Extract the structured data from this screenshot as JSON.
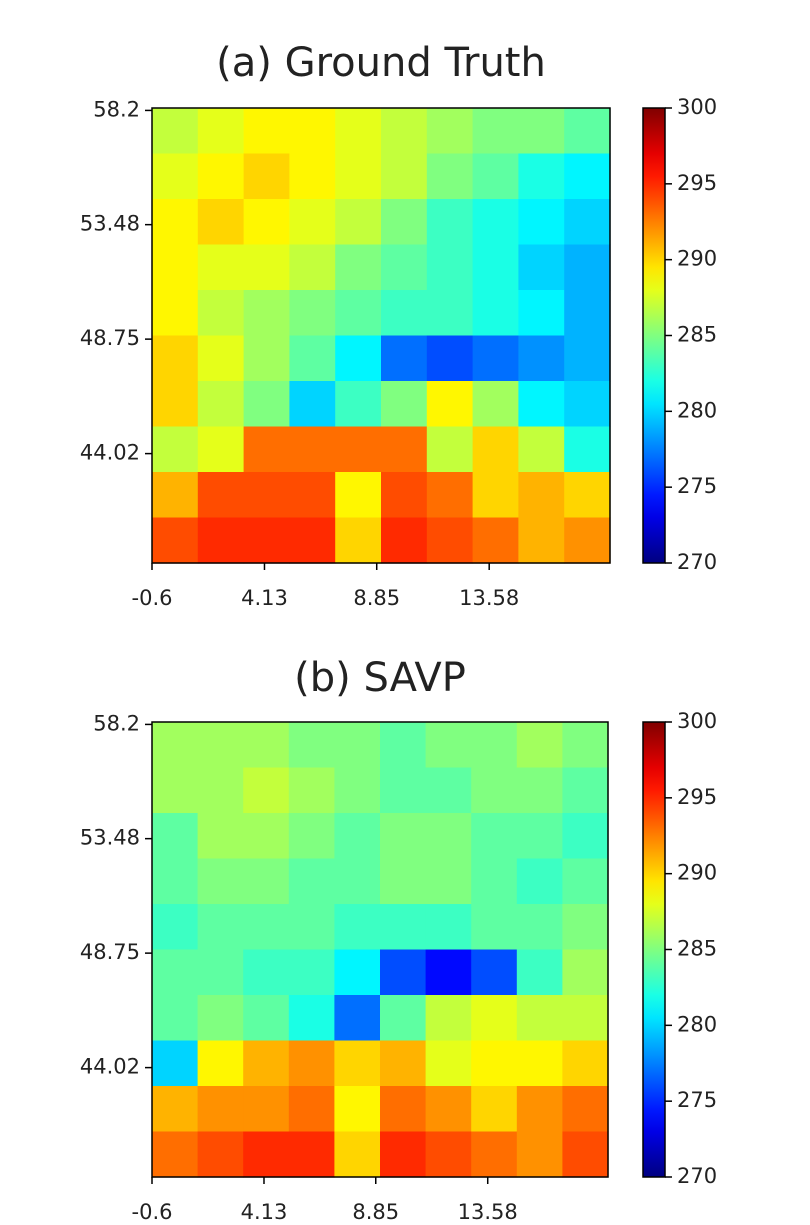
{
  "chart_data": [
    {
      "type": "heatmap",
      "title": "(a) Ground Truth",
      "colormap": "jet",
      "xlim": [
        -0.6,
        18.66
      ],
      "xticks": [
        -0.6,
        4.13,
        8.85,
        13.58
      ],
      "ylim": [
        39.5,
        58.3
      ],
      "yticks": [
        58.2,
        53.48,
        48.75,
        44.02
      ],
      "clim": [
        270,
        300
      ],
      "cticks": [
        270,
        275,
        280,
        285,
        290,
        295,
        300
      ],
      "values": [
        [
          287,
          288,
          289,
          289,
          288,
          287,
          286,
          285,
          285,
          284
        ],
        [
          288,
          289,
          290,
          289,
          288,
          287,
          285,
          284,
          282,
          281
        ],
        [
          289,
          290,
          289,
          288,
          287,
          285,
          283,
          282,
          281,
          280
        ],
        [
          289,
          288,
          288,
          287,
          285,
          284,
          283,
          282,
          280,
          279
        ],
        [
          289,
          287,
          286,
          285,
          284,
          283,
          283,
          282,
          281,
          279
        ],
        [
          290,
          288,
          286,
          284,
          281,
          277,
          276,
          277,
          278,
          279
        ],
        [
          290,
          287,
          285,
          280,
          283,
          285,
          289,
          286,
          281,
          280
        ],
        [
          287,
          288,
          293,
          293,
          293,
          293,
          287,
          290,
          287,
          282
        ],
        [
          291,
          294,
          294,
          294,
          289,
          294,
          293,
          290,
          291,
          290
        ],
        [
          294,
          295,
          295,
          295,
          290,
          295,
          294,
          293,
          291,
          292
        ]
      ]
    },
    {
      "type": "heatmap",
      "title": "(b) SAVP",
      "colormap": "jet",
      "xlim": [
        -0.6,
        18.66
      ],
      "xticks": [
        -0.6,
        4.13,
        8.85,
        13.58
      ],
      "ylim": [
        39.5,
        58.3
      ],
      "yticks": [
        58.2,
        53.48,
        48.75,
        44.02
      ],
      "clim": [
        270,
        300
      ],
      "cticks": [
        270,
        275,
        280,
        285,
        290,
        295,
        300
      ],
      "values": [
        [
          286,
          286,
          286,
          285,
          285,
          284,
          285,
          285,
          286,
          285
        ],
        [
          286,
          286,
          287,
          286,
          285,
          284,
          284,
          285,
          285,
          284
        ],
        [
          284,
          286,
          286,
          285,
          284,
          285,
          285,
          284,
          284,
          283
        ],
        [
          284,
          285,
          285,
          284,
          284,
          285,
          285,
          284,
          283,
          284
        ],
        [
          283,
          284,
          284,
          284,
          283,
          283,
          283,
          284,
          284,
          285
        ],
        [
          284,
          284,
          283,
          283,
          281,
          276,
          274,
          276,
          283,
          286
        ],
        [
          284,
          285,
          284,
          282,
          277,
          284,
          287,
          288,
          287,
          287
        ],
        [
          280,
          289,
          291,
          292,
          290,
          291,
          288,
          289,
          289,
          290
        ],
        [
          291,
          292,
          292,
          293,
          289,
          293,
          292,
          290,
          292,
          293
        ],
        [
          293,
          294,
          295,
          295,
          290,
          295,
          294,
          293,
          292,
          294
        ]
      ]
    }
  ]
}
